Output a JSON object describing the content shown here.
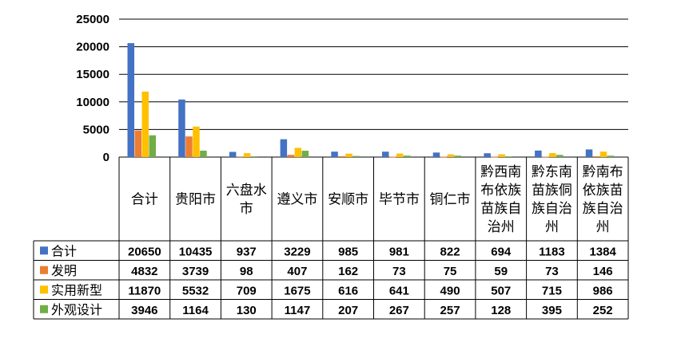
{
  "chart_data": {
    "type": "bar",
    "categories": [
      "合计",
      "贵阳市",
      "六盘水市",
      "遵义市",
      "安顺市",
      "毕节市",
      "铜仁市",
      "黔西南布依族苗族自治州",
      "黔东南苗族侗族自治州",
      "黔南布依族苗族自治州"
    ],
    "category_lines": [
      [
        "合计"
      ],
      [
        "贵阳市"
      ],
      [
        "六盘水",
        "市"
      ],
      [
        "遵义市"
      ],
      [
        "安顺市"
      ],
      [
        "毕节市"
      ],
      [
        "铜仁市"
      ],
      [
        "黔西南",
        "布依族",
        "苗族自",
        "治州"
      ],
      [
        "黔东南",
        "苗族侗",
        "族自治",
        "州"
      ],
      [
        "黔南布",
        "依族苗",
        "族自治",
        "州"
      ]
    ],
    "series": [
      {
        "name": "合计",
        "color": "#4472C4",
        "values": [
          20650,
          10435,
          937,
          3229,
          985,
          981,
          822,
          694,
          1183,
          1384
        ]
      },
      {
        "name": "发明",
        "color": "#ED7D31",
        "values": [
          4832,
          3739,
          98,
          407,
          162,
          73,
          75,
          59,
          73,
          146
        ]
      },
      {
        "name": "实用新型",
        "color": "#FFC000",
        "values": [
          11870,
          5532,
          709,
          1675,
          616,
          641,
          490,
          507,
          715,
          986
        ]
      },
      {
        "name": "外观设计",
        "color": "#70AD47",
        "values": [
          3946,
          1164,
          130,
          1147,
          207,
          267,
          257,
          128,
          395,
          252
        ]
      }
    ],
    "ylim": [
      0,
      25000
    ],
    "yticks": [
      0,
      5000,
      10000,
      15000,
      20000,
      25000
    ],
    "grid": true,
    "legend": "data-table-left"
  }
}
